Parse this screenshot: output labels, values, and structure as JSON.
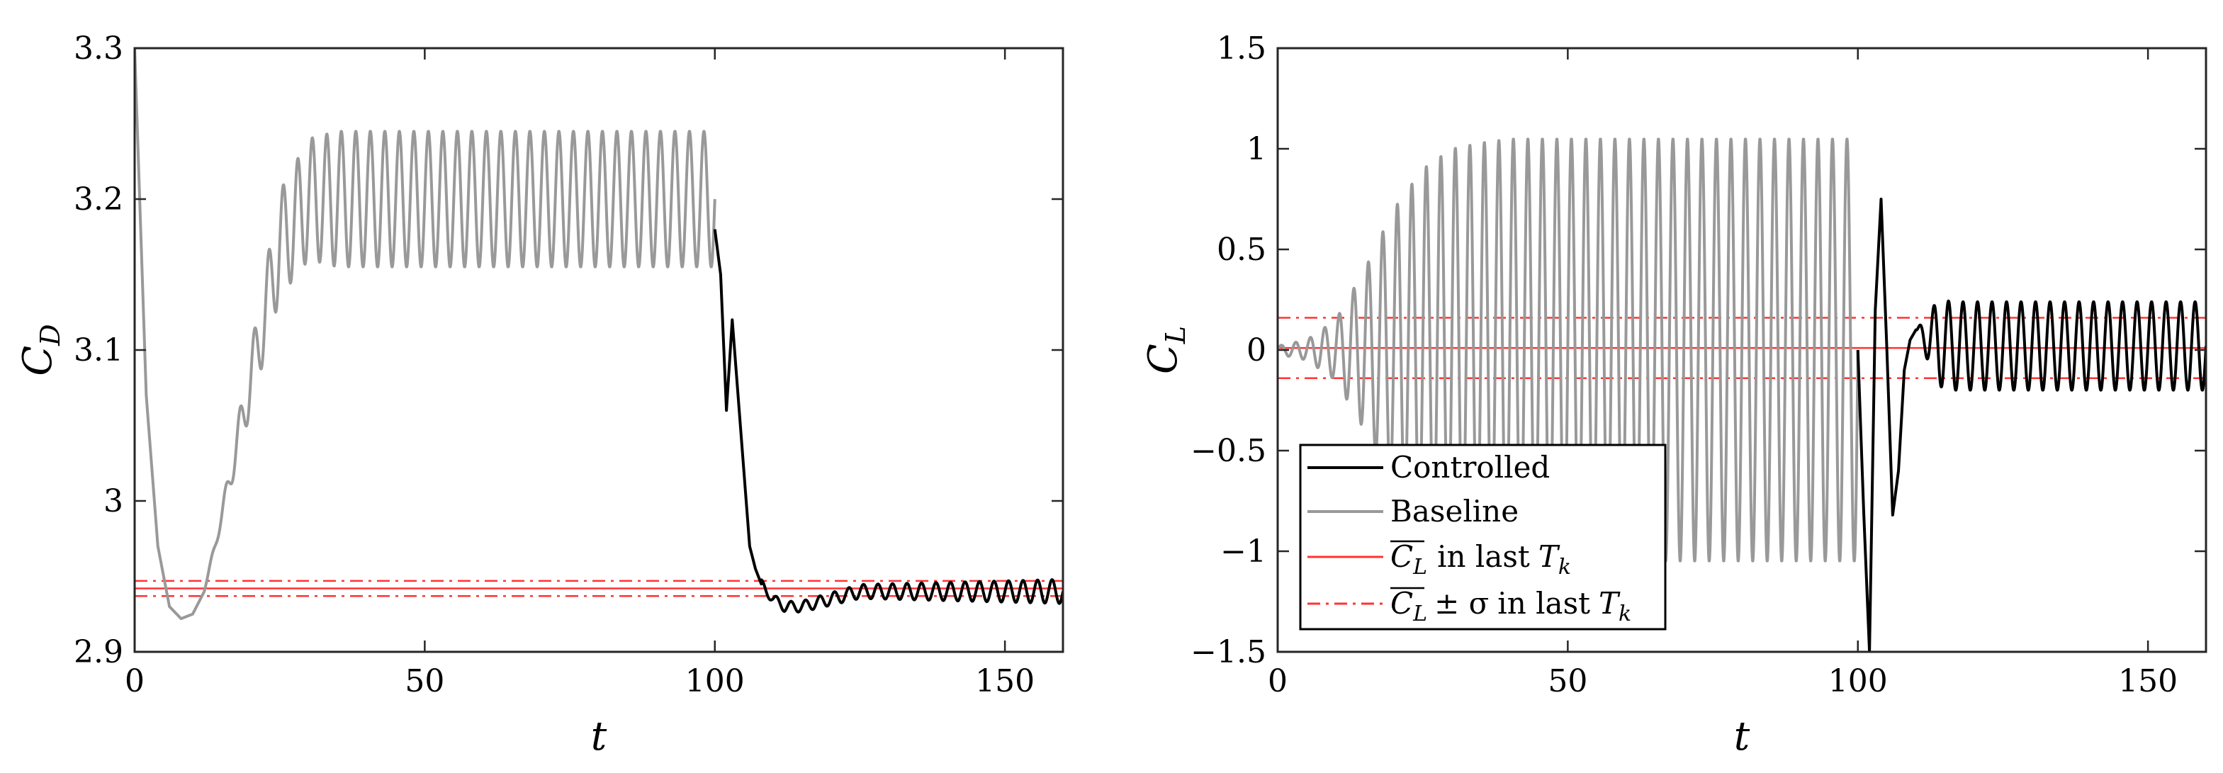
{
  "chart_data": [
    {
      "type": "line",
      "id": "drag",
      "xlabel": "t",
      "ylabel": "C",
      "ylabel_sub": "D",
      "xlim": [
        0,
        160
      ],
      "ylim": [
        2.9,
        3.3
      ],
      "xticks": [
        0,
        50,
        100,
        150
      ],
      "xtick_labels": [
        "0",
        "50",
        "100",
        "150"
      ],
      "yticks": [
        2.9,
        3.0,
        3.1,
        3.2,
        3.3
      ],
      "ytick_labels": [
        "2.9",
        "3",
        "3.1",
        "3.2",
        "3.3"
      ],
      "grid": false,
      "series": [
        {
          "name": "Baseline",
          "color": "#999999",
          "x_range": [
            0,
            100
          ],
          "description_points": {
            "t": [
              0,
              2,
              4,
              6,
              8,
              10,
              12,
              15,
              20,
              25,
              30,
              35,
              40,
              60,
              80,
              100
            ],
            "mean": [
              3.3,
              3.07,
              2.97,
              2.93,
              2.922,
              2.925,
              2.94,
              2.99,
              3.08,
              3.17,
              3.2,
              3.2,
              3.2,
              3.2,
              3.2,
              3.2
            ],
            "amplitude": [
              0,
              0,
              0,
              0,
              0,
              0,
              0,
              0.005,
              0.02,
              0.035,
              0.04,
              0.045,
              0.045,
              0.045,
              0.045,
              0.045
            ]
          },
          "period": 2.5
        },
        {
          "name": "Controlled",
          "color": "#000000",
          "x_range": [
            100,
            160
          ],
          "description_points": {
            "t": [
              100,
              101,
              102,
              103,
              104,
              105,
              106,
              107,
              108,
              110,
              112,
              115,
              120,
              125,
              130,
              160
            ],
            "value": [
              3.18,
              3.15,
              3.06,
              3.12,
              3.07,
              3.02,
              2.97,
              2.955,
              2.945,
              2.935,
              2.93,
              2.93,
              2.935,
              2.94,
              2.94,
              2.94
            ]
          },
          "oscillation": {
            "start": 108,
            "amplitude_start": 0.003,
            "amplitude_end": 0.008,
            "period": 2.5
          }
        }
      ],
      "reference_lines": [
        {
          "name": "mean",
          "value": 2.942,
          "style": "solid",
          "color": "#ff3333"
        },
        {
          "name": "mean+sigma",
          "value": 2.947,
          "style": "dashdot",
          "color": "#ff3333"
        },
        {
          "name": "mean-sigma",
          "value": 2.937,
          "style": "dashdot",
          "color": "#ff3333"
        }
      ]
    },
    {
      "type": "line",
      "id": "lift",
      "xlabel": "t",
      "ylabel": "C",
      "ylabel_sub": "L",
      "xlim": [
        0,
        160
      ],
      "ylim": [
        -1.5,
        1.5
      ],
      "xticks": [
        0,
        50,
        100,
        150
      ],
      "xtick_labels": [
        "0",
        "50",
        "100",
        "150"
      ],
      "yticks": [
        -1.5,
        -1,
        -0.5,
        0,
        0.5,
        1,
        1.5
      ],
      "ytick_labels": [
        "−1.5",
        "−1",
        "−0.5",
        "0",
        "0.5",
        "1",
        "1.5"
      ],
      "grid": false,
      "series": [
        {
          "name": "Baseline",
          "color": "#999999",
          "x_range": [
            0,
            100
          ],
          "description_points": {
            "t": [
              0,
              5,
              10,
              15,
              20,
              25,
              30,
              35,
              40,
              100
            ],
            "amplitude": [
              0.02,
              0.05,
              0.15,
              0.4,
              0.7,
              0.9,
              1.0,
              1.03,
              1.05,
              1.05
            ]
          },
          "period": 2.5
        },
        {
          "name": "Controlled",
          "color": "#000000",
          "x_range": [
            100,
            160
          ],
          "description_points": {
            "t": [
              100,
              101,
              102,
              103,
              104,
              105,
              106,
              107,
              108,
              109,
              110,
              112,
              114,
              116,
              160
            ],
            "value": [
              0.0,
              -0.8,
              -1.5,
              0.2,
              0.75,
              0.0,
              -0.82,
              -0.6,
              -0.1,
              0.05,
              0.1,
              0.05,
              0.02,
              0.0,
              0.0
            ]
          },
          "oscillation": {
            "start": 110,
            "amplitude": 0.22,
            "mean": 0.02,
            "period": 2.5
          }
        }
      ],
      "reference_lines": [
        {
          "name": "mean",
          "value": 0.01,
          "style": "solid",
          "color": "#ff3333"
        },
        {
          "name": "mean+sigma",
          "value": 0.16,
          "style": "dashdot",
          "color": "#ff3333"
        },
        {
          "name": "mean-sigma",
          "value": -0.14,
          "style": "dashdot",
          "color": "#ff3333"
        }
      ],
      "legend": {
        "placement": "bottom-left",
        "entries": [
          {
            "label": "Controlled",
            "color": "#000000",
            "style": "solid"
          },
          {
            "label": "Baseline",
            "color": "#999999",
            "style": "solid"
          },
          {
            "label_main": "C",
            "label_sub": "L",
            "label_rest": "in last",
            "label_T": "T",
            "label_T_sub": "k",
            "color": "#ff3333",
            "style": "solid"
          },
          {
            "label_main": "C",
            "label_sub": "L",
            "label_pm": "± σ",
            "label_rest": "in last",
            "label_T": "T",
            "label_T_sub": "k",
            "color": "#ff3333",
            "style": "dashdot"
          }
        ]
      }
    }
  ]
}
